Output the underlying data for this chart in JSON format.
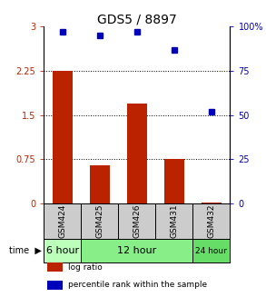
{
  "title": "GDS5 / 8897",
  "samples": [
    "GSM424",
    "GSM425",
    "GSM426",
    "GSM431",
    "GSM432"
  ],
  "log_ratio": [
    2.25,
    0.65,
    1.7,
    0.75,
    0.02
  ],
  "percentile_rank": [
    97,
    95,
    97,
    87,
    52
  ],
  "bar_color": "#bb2200",
  "dot_color": "#0000bb",
  "ylim_left": [
    0,
    3
  ],
  "ylim_right": [
    0,
    100
  ],
  "yticks_left": [
    0,
    0.75,
    1.5,
    2.25,
    3
  ],
  "yticks_right": [
    0,
    25,
    50,
    75,
    100
  ],
  "ytick_labels_right": [
    "0",
    "25",
    "50",
    "75",
    "100%"
  ],
  "hlines": [
    0.75,
    1.5,
    2.25
  ],
  "time_groups": [
    {
      "label": "6 hour",
      "cols": [
        0
      ],
      "color": "#bbffbb"
    },
    {
      "label": "12 hour",
      "cols": [
        1,
        2,
        3
      ],
      "color": "#88ee88"
    },
    {
      "label": "24 hour",
      "cols": [
        4
      ],
      "color": "#66dd66"
    }
  ],
  "legend_items": [
    {
      "label": "log ratio",
      "color": "#bb2200"
    },
    {
      "label": "percentile rank within the sample",
      "color": "#0000bb"
    }
  ],
  "bg_color_sample": "#cccccc",
  "bg_color_plot": "#ffffff",
  "title_fontsize": 10,
  "tick_fontsize": 7,
  "bar_width": 0.55
}
